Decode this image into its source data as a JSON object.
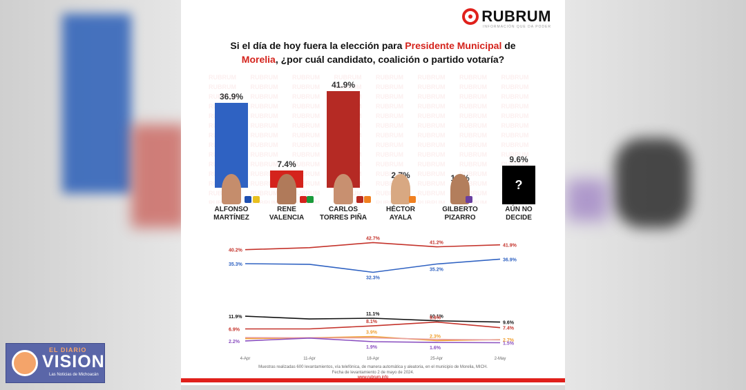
{
  "logo": {
    "name": "RUBRUM",
    "tagline": "INFORMACIÓN QUE DA PODER"
  },
  "question": {
    "part1": "Si el día de hoy fuera la elección para ",
    "highlight1": "Presidente Municipal",
    "part2": " de",
    "highlight2": "Morelia",
    "part3": ", ¿por cuál candidato, coalición o partido votaría?"
  },
  "watermark_text": "RUBRUM",
  "colors": {
    "accent_red": "#d4231c",
    "blue": "#2f62c2",
    "red": "#c4322a",
    "orange": "#f0a030",
    "purple": "#8a4fc0",
    "black": "#111111",
    "pink": "#e8a0a0"
  },
  "chart_data": [
    {
      "type": "bar",
      "categories": [
        "ALFONSO MARTÍNEZ",
        "RENE VALENCIA",
        "CARLOS TORRES PIÑA",
        "HÉCTOR AYALA",
        "GILBERTO PIZARRO",
        "AÚN NO DECIDE"
      ],
      "values": [
        36.9,
        7.4,
        41.9,
        2.7,
        1.5,
        9.6
      ],
      "labels": [
        "36.9%",
        "7.4%",
        "41.9%",
        "2.7%",
        "1.5%",
        "9.6%"
      ],
      "bar_colors": [
        "#2f62c2",
        "#d4231c",
        "#b52a24",
        "#f0a030",
        "#8a4fc0",
        "#111111"
      ],
      "name_lines": [
        [
          "ALFONSO",
          "MARTÍNEZ"
        ],
        [
          "RENE",
          "VALENCIA"
        ],
        [
          "CARLOS",
          "TORRES PIÑA"
        ],
        [
          "HÉCTOR",
          "AYALA"
        ],
        [
          "GILBERTO",
          "PIZARRO"
        ],
        [
          "AÚN NO",
          "DECIDE"
        ]
      ],
      "ylim": [
        0,
        45
      ]
    },
    {
      "type": "line",
      "x": [
        "4-Apr",
        "11-Apr",
        "18-Apr",
        "25-Apr",
        "2-May"
      ],
      "series": [
        {
          "color": "#c4322a",
          "values": [
            40.2,
            40.9,
            42.7,
            41.2,
            41.9
          ],
          "labels": [
            "40.2%",
            "",
            "42.7%",
            "41.2%",
            "41.9%"
          ]
        },
        {
          "color": "#2f62c2",
          "values": [
            35.3,
            35.1,
            32.3,
            35.2,
            36.9
          ],
          "labels": [
            "35.3%",
            "",
            "32.3%",
            "35.2%",
            "36.9%"
          ]
        }
      ],
      "ylim": [
        30,
        44
      ]
    },
    {
      "type": "line",
      "x": [
        "4-Apr",
        "11-Apr",
        "18-Apr",
        "25-Apr",
        "2-May"
      ],
      "series": [
        {
          "color": "#111111",
          "values": [
            11.9,
            10.8,
            11.1,
            10.1,
            9.6
          ],
          "labels": [
            "11.9%",
            "",
            "11.1%",
            "10.1%",
            "9.6%"
          ]
        },
        {
          "color": "#c4322a",
          "values": [
            6.9,
            6.9,
            8.1,
            9.6,
            7.4
          ],
          "labels": [
            "6.9%",
            "",
            "8.1%",
            "9.6%",
            "7.4%"
          ]
        },
        {
          "color": "#f0a030",
          "values": [
            3.1,
            3.4,
            3.9,
            2.3,
            2.7
          ],
          "labels": [
            "",
            "",
            "3.9%",
            "2.3%",
            "2.7%"
          ]
        },
        {
          "color": "#e8a0a0",
          "values": [
            3.5,
            3.4,
            3.4,
            2.8,
            2.6
          ],
          "labels": [
            "",
            "",
            "",
            "",
            ""
          ]
        },
        {
          "color": "#8a4fc0",
          "values": [
            2.2,
            3.3,
            1.9,
            1.6,
            1.5
          ],
          "labels": [
            "2.2%",
            "",
            "1.9%",
            "1.6%",
            "1.5%"
          ]
        }
      ],
      "ylim": [
        0,
        13
      ]
    }
  ],
  "footer": {
    "line1": "Muestras realizadas 600 levantamientos, vía telefónica, de manera automática y aleatoria, en el municipio de Morelia, MICH.",
    "line2": "Fecha de levantamiento 2 de mayo de 2024.",
    "line3": "www.rubrum.info"
  },
  "overlay_logo": {
    "top": "EL DIARIO",
    "main": "VISION",
    "sub": "Las Noticias de Michoacán"
  }
}
